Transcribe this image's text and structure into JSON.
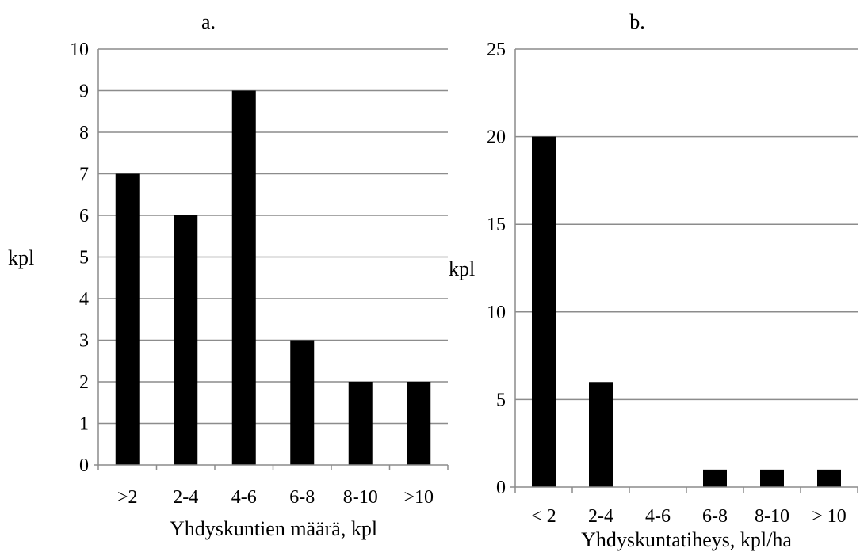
{
  "chart_data": [
    {
      "type": "bar",
      "title": "a.",
      "xlabel": "Yhdyskuntien määrä, kpl",
      "ylabel": "kpl",
      "categories": [
        ">2",
        "2-4",
        "4-6",
        "6-8",
        "8-10",
        ">10"
      ],
      "values": [
        7,
        6,
        9,
        3,
        2,
        2
      ],
      "ylim": [
        0,
        10
      ],
      "yticks": [
        0,
        1,
        2,
        3,
        4,
        5,
        6,
        7,
        8,
        9,
        10
      ],
      "grid": true,
      "bar_color": "#000000"
    },
    {
      "type": "bar",
      "title": "b.",
      "xlabel": "Yhdyskuntatiheys, kpl/ha",
      "ylabel": "kpl",
      "categories": [
        "< 2",
        "2-4",
        "4-6",
        "6-8",
        "8-10",
        "> 10"
      ],
      "values": [
        20,
        6,
        0,
        1,
        1,
        1
      ],
      "ylim": [
        0,
        25
      ],
      "yticks": [
        0,
        5,
        10,
        15,
        20,
        25
      ],
      "grid": true,
      "bar_color": "#000000"
    }
  ]
}
